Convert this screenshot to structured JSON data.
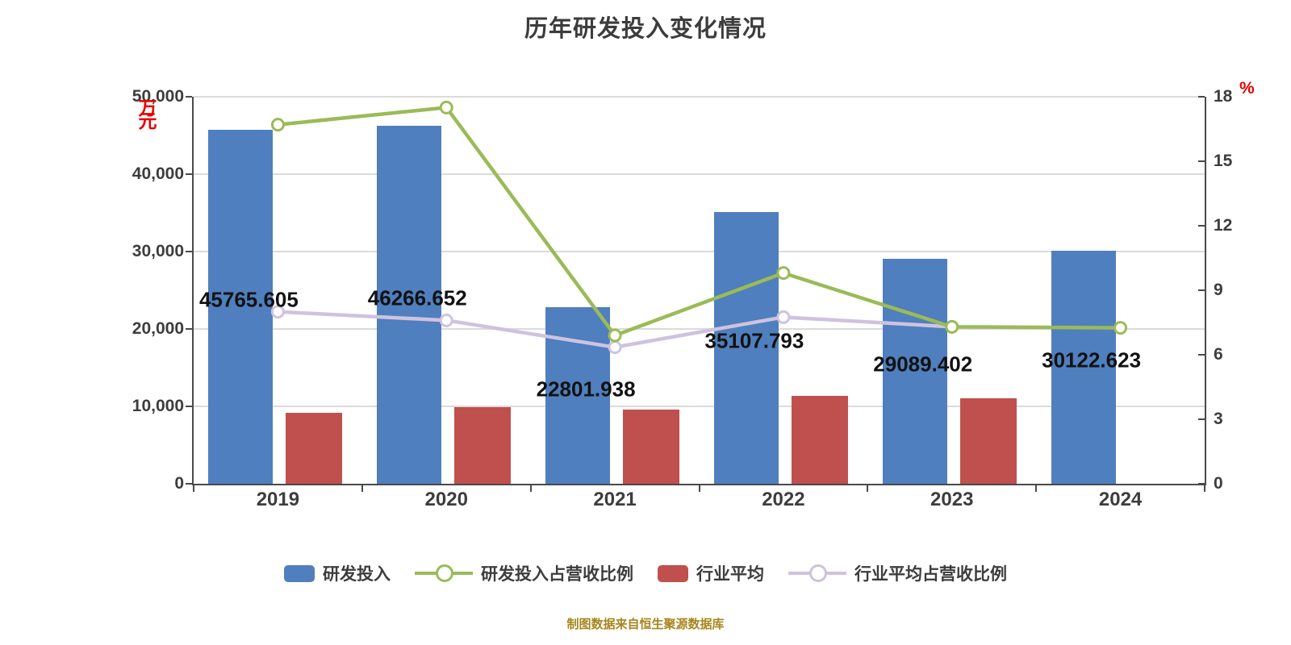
{
  "title": "历年研发投入变化情况",
  "footer": "制图数据来自恒生聚源数据库",
  "colors": {
    "background": "#FFFFFF",
    "grid": "#DBDBDB",
    "axis": "#4A4A4A",
    "tick_text": "#3D3D3D",
    "data_label": "#121212",
    "unit_text": "#E60000",
    "footer_text": "#A6861D",
    "bar_blue": "#4F7FBE",
    "bar_red": "#C0504D",
    "line_green": "#9ABB57",
    "line_purple": "#CEC3DE",
    "marker_fill": "#FFFFFF"
  },
  "legend": [
    {
      "label": "研发投入",
      "swatch": "bar",
      "color": "#4F7FBE"
    },
    {
      "label": "研发投入占营收比例",
      "swatch": "line",
      "color": "#9ABB57"
    },
    {
      "label": "行业平均",
      "swatch": "bar",
      "color": "#C0504D"
    },
    {
      "label": "行业平均占营收比例",
      "swatch": "line",
      "color": "#CEC3DE"
    }
  ],
  "chart_data": {
    "type": "bar+line combo, dual axis",
    "categories": [
      "2019",
      "2020",
      "2021",
      "2022",
      "2023",
      "2024"
    ],
    "series": [
      {
        "name": "研发投入",
        "type": "bar",
        "axis": "left",
        "color": "#4F7FBE",
        "values": [
          45765.605,
          46266.652,
          22801.938,
          35107.793,
          29089.402,
          30122.623
        ],
        "labels": [
          "45765.605",
          "46266.652",
          "22801.938",
          "35107.793",
          "29089.402",
          "30122.623"
        ]
      },
      {
        "name": "研发投入占营收比例",
        "type": "line",
        "axis": "right",
        "color": "#9ABB57",
        "values": [
          16.7,
          17.5,
          6.9,
          9.8,
          7.3,
          7.25
        ]
      },
      {
        "name": "行业平均",
        "type": "bar",
        "axis": "left",
        "color": "#C0504D",
        "values": [
          9150,
          9900,
          9550,
          11400,
          11050,
          null
        ]
      },
      {
        "name": "行业平均占营收比例",
        "type": "line",
        "axis": "right",
        "color": "#CEC3DE",
        "values": [
          8.0,
          7.6,
          6.35,
          7.75,
          7.3,
          null
        ]
      }
    ],
    "left_axis": {
      "unit": "万元",
      "min": 0,
      "max": 50000,
      "ticks": [
        {
          "label": "0",
          "v": 0
        },
        {
          "label": "10,000",
          "v": 10000
        },
        {
          "label": "20,000",
          "v": 20000
        },
        {
          "label": "30,000",
          "v": 30000
        },
        {
          "label": "40,000",
          "v": 40000
        },
        {
          "label": "50,000",
          "v": 50000
        }
      ]
    },
    "right_axis": {
      "unit": "%",
      "min": 0,
      "max": 18,
      "ticks": [
        {
          "label": "0",
          "v": 0
        },
        {
          "label": "3",
          "v": 3
        },
        {
          "label": "6",
          "v": 6
        },
        {
          "label": "9",
          "v": 9
        },
        {
          "label": "12",
          "v": 12
        },
        {
          "label": "15",
          "v": 15
        },
        {
          "label": "18",
          "v": 18
        }
      ]
    },
    "grid": true,
    "legend_position": "bottom"
  }
}
